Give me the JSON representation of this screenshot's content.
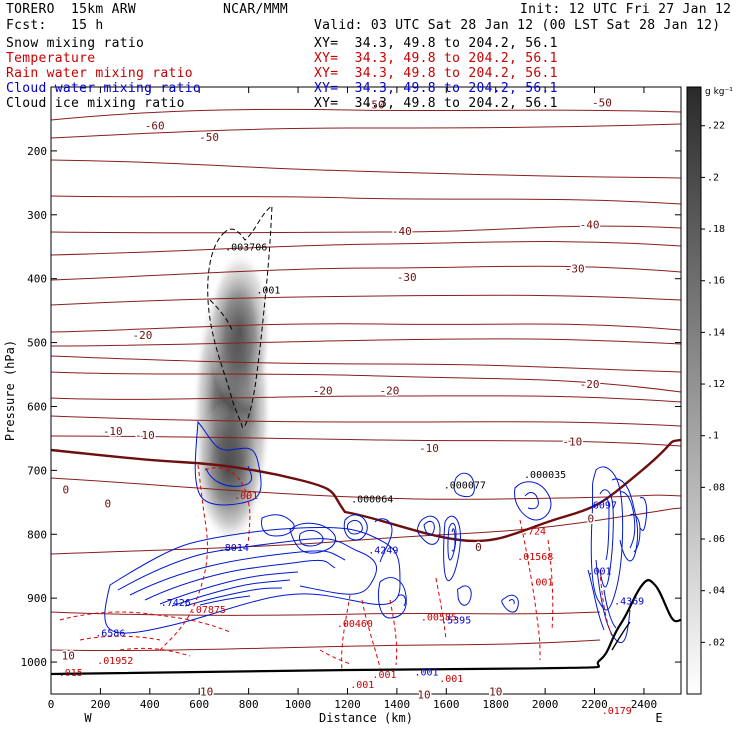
{
  "header": {
    "model": "TORERO  15km ARW",
    "org": "NCAR/MMM",
    "init": "Init: 12 UTC Fri 27 Jan 12",
    "fcst": "Fcst:   15 h",
    "valid": "Valid: 03 UTC Sat 28 Jan 12 (00 LST Sat 28 Jan 12)",
    "fields": [
      {
        "name": "Snow mixing ratio",
        "xy": "XY=  34.3, 49.8 to 204.2, 56.1",
        "color": "#000000"
      },
      {
        "name": "Temperature",
        "xy": "XY=  34.3, 49.8 to 204.2, 56.1",
        "color": "#cc0000"
      },
      {
        "name": "Rain water mixing ratio",
        "xy": "XY=  34.3, 49.8 to 204.2, 56.1",
        "color": "#cc0000"
      },
      {
        "name": "Cloud water mixing ratio",
        "xy": "XY=  34.3, 49.8 to 204.2, 56.1",
        "color": "#0000cc"
      },
      {
        "name": "Cloud ice mixing ratio",
        "xy": "XY=  34.3, 49.8 to 204.2, 56.1",
        "color": "#000000"
      }
    ]
  },
  "chart_data": {
    "type": "contour-cross-section",
    "xlabel": "Distance (km)",
    "ylabel": "Pressure (hPa)",
    "xlim": [
      0,
      2550
    ],
    "ylim": [
      1050,
      100
    ],
    "x_ticks": [
      0,
      200,
      400,
      600,
      800,
      1000,
      1200,
      1400,
      1600,
      1800,
      2000,
      2200,
      2400
    ],
    "y_ticks": [
      200,
      300,
      400,
      500,
      600,
      700,
      800,
      900,
      1000
    ],
    "end_labels": {
      "left": "W",
      "right": "E"
    },
    "colorbar": {
      "unit": "g kg⁻¹",
      "min": 0,
      "max": 0.235,
      "ticks": [
        0.02,
        0.04,
        0.06,
        0.08,
        0.1,
        0.12,
        0.14,
        0.16,
        0.18,
        0.2,
        0.22
      ],
      "tick_labels": [
        ".02",
        ".04",
        ".06",
        ".08",
        ".1",
        ".12",
        ".14",
        ".16",
        ".18",
        ".2",
        ".22"
      ]
    },
    "snow_core": {
      "x": 740,
      "p": 560,
      "peak": 0.23
    },
    "temperature_labels": [
      {
        "x": 420,
        "p": 160,
        "text": "-60"
      },
      {
        "x": 1310,
        "p": 127,
        "text": "-50"
      },
      {
        "x": 2230,
        "p": 124,
        "text": "-50"
      },
      {
        "x": 640,
        "p": 178,
        "text": "-50"
      },
      {
        "x": 1420,
        "p": 325,
        "text": "-40"
      },
      {
        "x": 2180,
        "p": 315,
        "text": "-40"
      },
      {
        "x": 1440,
        "p": 397,
        "text": "-30"
      },
      {
        "x": 2120,
        "p": 384,
        "text": "-30"
      },
      {
        "x": 370,
        "p": 488,
        "text": "-20"
      },
      {
        "x": 1100,
        "p": 575,
        "text": "-20"
      },
      {
        "x": 1370,
        "p": 575,
        "text": "-20"
      },
      {
        "x": 2180,
        "p": 565,
        "text": "-20"
      },
      {
        "x": 250,
        "p": 638,
        "text": "-10"
      },
      {
        "x": 380,
        "p": 645,
        "text": "-10"
      },
      {
        "x": 1530,
        "p": 665,
        "text": "-10"
      },
      {
        "x": 2110,
        "p": 655,
        "text": "-10"
      },
      {
        "x": 60,
        "p": 730,
        "text": "0"
      },
      {
        "x": 230,
        "p": 752,
        "text": "0"
      },
      {
        "x": 1730,
        "p": 820,
        "text": "0"
      },
      {
        "x": 2185,
        "p": 775,
        "text": "0"
      },
      {
        "x": 70,
        "p": 990,
        "text": "10"
      },
      {
        "x": 630,
        "p": 1046,
        "text": "10"
      },
      {
        "x": 1510,
        "p": 1051,
        "text": "10"
      },
      {
        "x": 1800,
        "p": 1046,
        "text": "10"
      }
    ],
    "maxima": [
      {
        "x": 790,
        "p": 356,
        "value": ".003706",
        "color": "#000000"
      },
      {
        "x": 880,
        "p": 423,
        "value": ".001",
        "color": "#000000"
      },
      {
        "x": 1300,
        "p": 750,
        "value": ".000064",
        "color": "#000000"
      },
      {
        "x": 1675,
        "p": 728,
        "value": ".000077",
        "color": "#000000"
      },
      {
        "x": 2000,
        "p": 712,
        "value": ".000035",
        "color": "#000000"
      },
      {
        "x": 2230,
        "p": 760,
        "value": ".6097",
        "color": "#0000cc"
      },
      {
        "x": 740,
        "p": 826,
        "value": ".8014",
        "color": "#0000cc"
      },
      {
        "x": 505,
        "p": 912,
        "value": ".7426",
        "color": "#0000cc"
      },
      {
        "x": 240,
        "p": 960,
        "value": ".6586",
        "color": "#0000cc"
      },
      {
        "x": 1345,
        "p": 830,
        "value": ".4249",
        "color": "#0000cc"
      },
      {
        "x": 2340,
        "p": 910,
        "value": ".4369",
        "color": "#0000cc"
      },
      {
        "x": 1640,
        "p": 940,
        "value": ".5395",
        "color": "#0000cc"
      },
      {
        "x": 1955,
        "p": 800,
        "value": ".724",
        "color": "#cc0000"
      },
      {
        "x": 1960,
        "p": 840,
        "value": ".01568",
        "color": "#cc0000"
      },
      {
        "x": 635,
        "p": 923,
        "value": ".07875",
        "color": "#cc0000"
      },
      {
        "x": 1230,
        "p": 945,
        "value": ".00460",
        "color": "#cc0000"
      },
      {
        "x": 1570,
        "p": 935,
        "value": ".00585",
        "color": "#cc0000"
      },
      {
        "x": 260,
        "p": 1003,
        "value": ".01952",
        "color": "#cc0000"
      },
      {
        "x": 790,
        "p": 745,
        "value": ".001",
        "color": "#cc0000"
      },
      {
        "x": 1985,
        "p": 880,
        "value": ".001",
        "color": "#cc0000"
      },
      {
        "x": 1620,
        "p": 1031,
        "value": ".001",
        "color": "#cc0000"
      },
      {
        "x": 1260,
        "p": 1041,
        "value": ".001",
        "color": "#cc0000"
      },
      {
        "x": 1350,
        "p": 1025,
        "value": ".001",
        "color": "#cc0000"
      },
      {
        "x": 1080,
        "p": 1142,
        "value": ".001",
        "color": "#cc0000"
      },
      {
        "x": 1330,
        "p": 1142,
        "value": ".001",
        "color": "#cc0000"
      },
      {
        "x": 2290,
        "p": 1081,
        "value": ".0179",
        "color": "#cc0000"
      },
      {
        "x": 80,
        "p": 1022,
        "value": ".015",
        "color": "#cc0000"
      },
      {
        "x": 2220,
        "p": 863,
        "value": ".001",
        "color": "#0000cc"
      },
      {
        "x": 1520,
        "p": 1021,
        "value": ".001",
        "color": "#0000cc"
      }
    ]
  }
}
